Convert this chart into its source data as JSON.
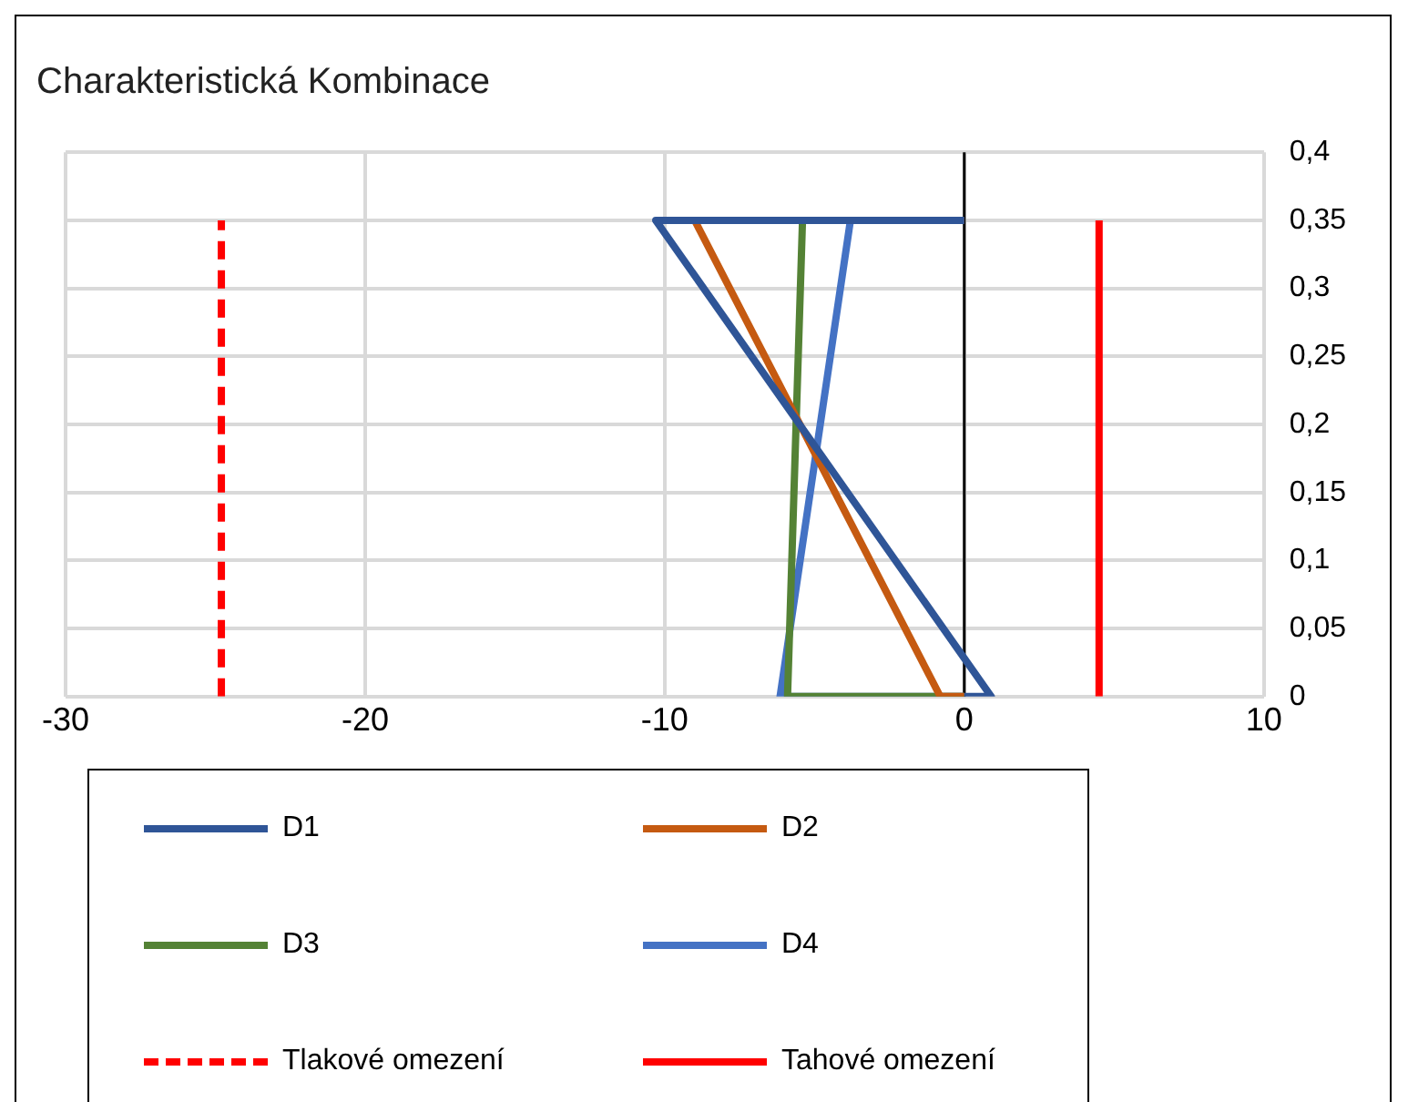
{
  "chart_data": {
    "type": "line",
    "title": "Charakteristická Kombinace",
    "xlim": [
      -30,
      10
    ],
    "xticks": [
      -30,
      -20,
      -10,
      0,
      10
    ],
    "ylim": [
      0,
      0.4
    ],
    "yticks": [
      {
        "value": 0,
        "label": "0"
      },
      {
        "value": 0.05,
        "label": "0,05"
      },
      {
        "value": 0.1,
        "label": "0,1"
      },
      {
        "value": 0.15,
        "label": "0,15"
      },
      {
        "value": 0.2,
        "label": "0,2"
      },
      {
        "value": 0.25,
        "label": "0,25"
      },
      {
        "value": 0.3,
        "label": "0,3"
      },
      {
        "value": 0.35,
        "label": "0,35"
      },
      {
        "value": 0.4,
        "label": "0,4"
      }
    ],
    "grid": true,
    "legend": "bottom",
    "marker": "none",
    "line_style": "solid",
    "ref_lines": [
      {
        "axis": "x",
        "value": 0,
        "color": "#000000"
      }
    ],
    "series": [
      {
        "name": "D1",
        "color": "#2f5597",
        "x": [
          0,
          -10.3,
          0.9,
          0
        ],
        "values": [
          0.35,
          0.35,
          0,
          0
        ]
      },
      {
        "name": "D2",
        "color": "#c55a11",
        "x": [
          0,
          -9,
          -0.8,
          0
        ],
        "values": [
          0.35,
          0.35,
          0,
          0
        ]
      },
      {
        "name": "D3",
        "color": "#548235",
        "x": [
          0,
          -5.4,
          -5.9,
          0
        ],
        "values": [
          0.35,
          0.35,
          0,
          0
        ]
      },
      {
        "name": "D4",
        "color": "#4472c4",
        "x": [
          0,
          -3.8,
          -6.15,
          0
        ],
        "values": [
          0.35,
          0.35,
          0,
          0
        ]
      },
      {
        "name": "Tlakové omezení",
        "color": "#ff0000",
        "line_style": "dashed",
        "x": [
          -24.8,
          -24.8
        ],
        "values": [
          0,
          0.35
        ]
      },
      {
        "name": "Tahové omezení",
        "color": "#ff0000",
        "x": [
          4.5,
          4.5
        ],
        "values": [
          0,
          0.35
        ]
      }
    ]
  }
}
